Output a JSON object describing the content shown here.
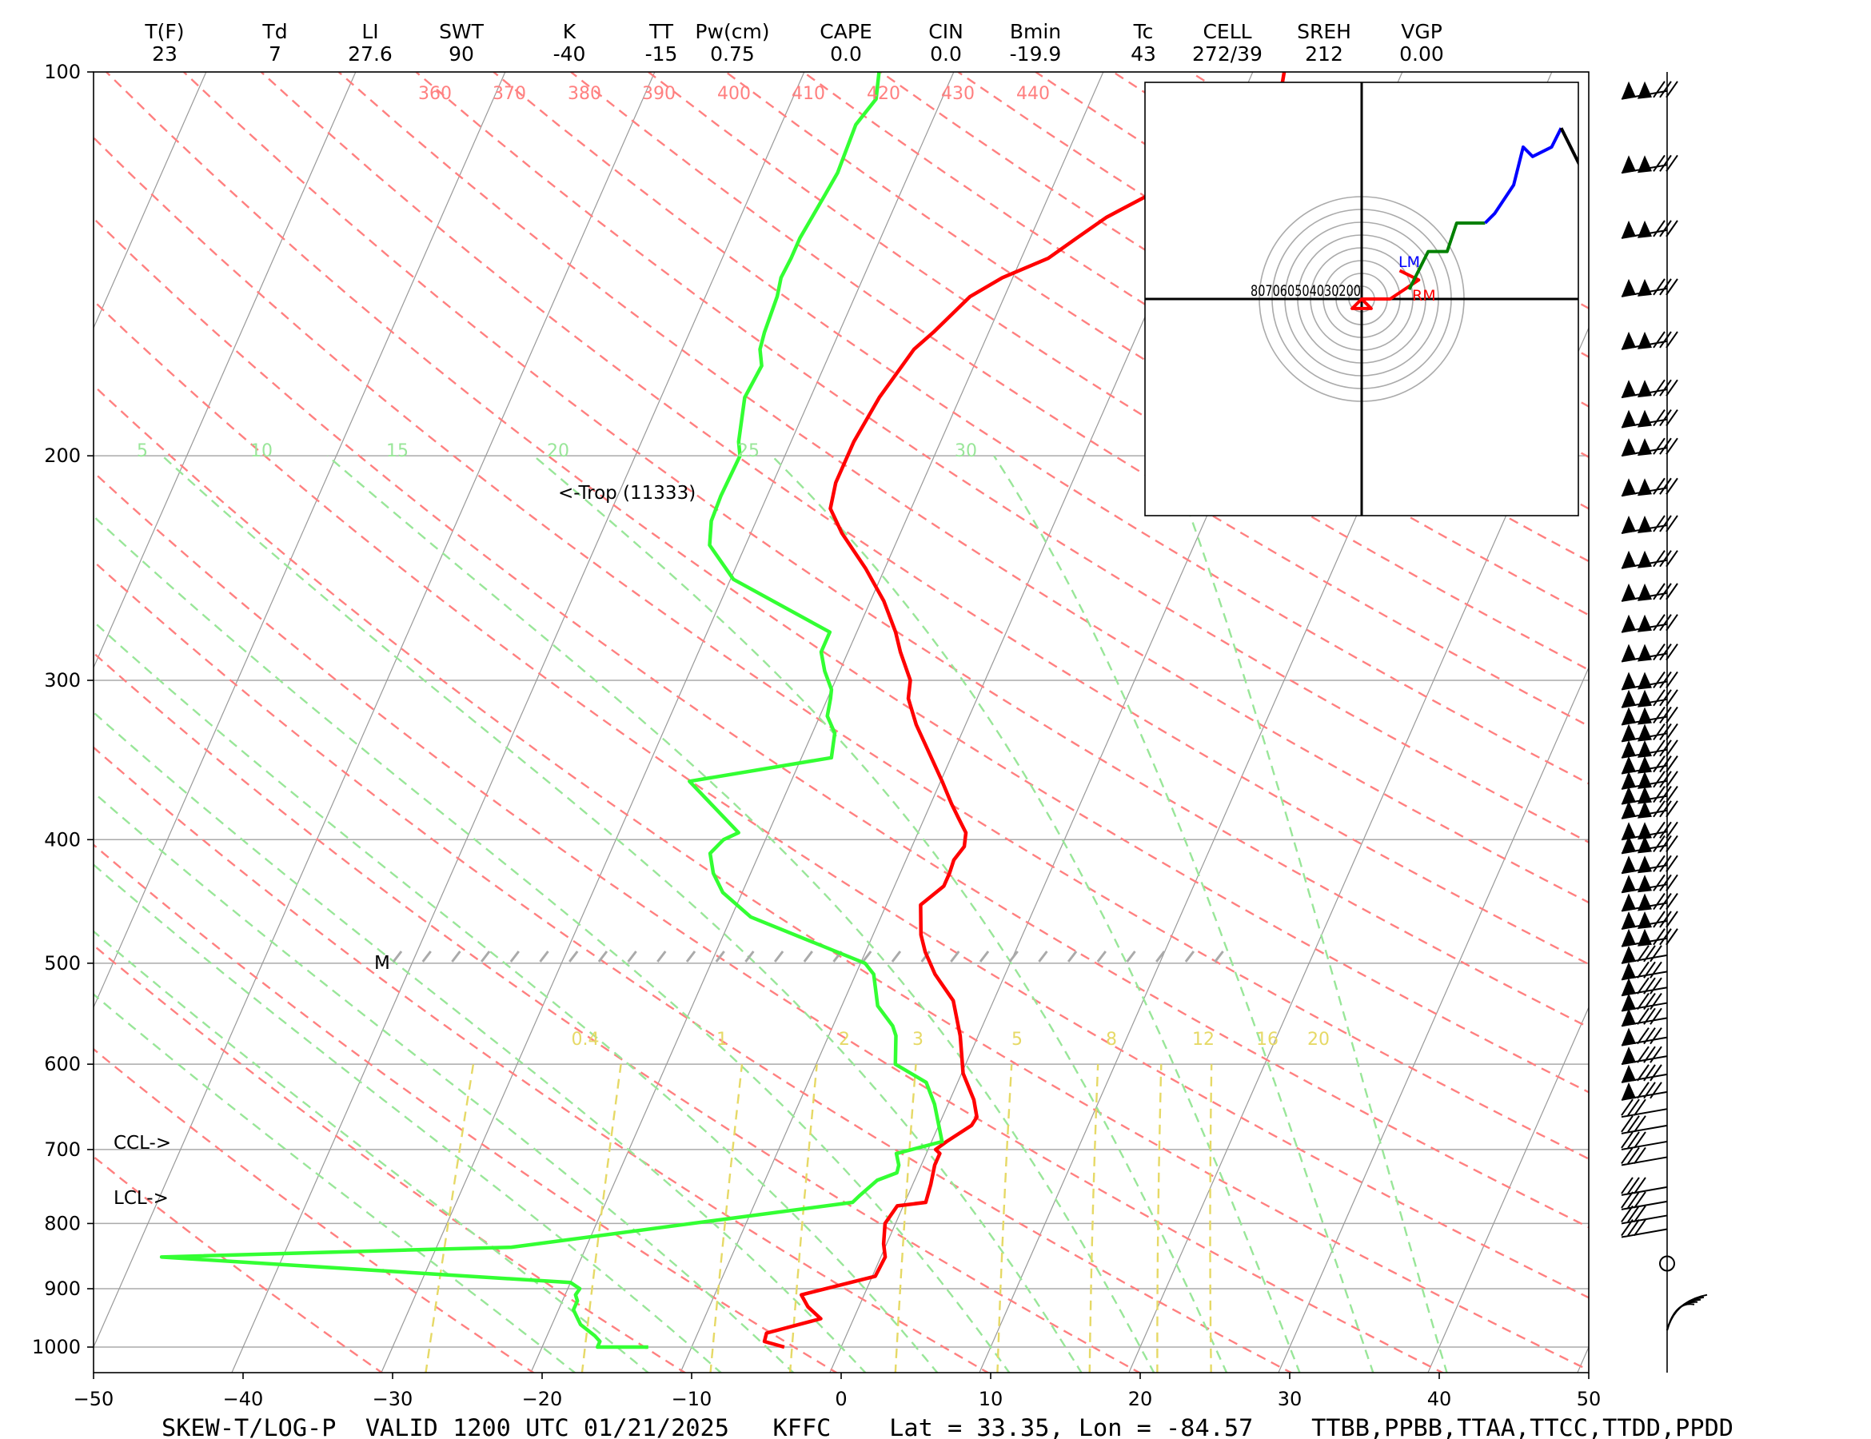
{
  "header": {
    "labels": [
      "T(F)",
      "Td",
      "LI",
      "SWT",
      "K",
      "TT",
      "Pw(cm)",
      "CAPE",
      "CIN",
      "Bmin",
      "Tc",
      "CELL",
      "SREH",
      "VGP"
    ],
    "values": [
      "23",
      "7",
      "27.6",
      "90",
      "-40",
      "-15",
      "0.75",
      "0.0",
      "0.0",
      "-19.9",
      "43",
      "272/39",
      "212",
      "0.00"
    ]
  },
  "footer": {
    "title": "SKEW-T/LOG-P  VALID 1200 UTC 01/21/2025   KFFC    Lat = 33.35, Lon = -84.57    TTBB,PPBB,TTAA,TTCC,TTDD,PPDD"
  },
  "annotations": {
    "trop": "<-Trop (11333)",
    "ccl": "CCL->",
    "lcl": "LCL->",
    "m": "M"
  },
  "hodograph": {
    "ring_labels": "807060504030200",
    "lm": "LM",
    "rm": "RM"
  },
  "colors": {
    "temperature": "#ff0000",
    "dewpoint": "#33ff33",
    "dry_adiabat": "#ff8080",
    "moist_adiabat": "#99e699",
    "mixing_ratio": "#e6d966",
    "isotherm": "#999999"
  },
  "chart_data": {
    "type": "skew-t",
    "xlabel": "",
    "ylabel": "",
    "x_ticks": [
      "−50",
      "−40",
      "−30",
      "−20",
      "−10",
      "0",
      "10",
      "20",
      "30",
      "40",
      "50"
    ],
    "x_tick_values": [
      -50,
      -40,
      -30,
      -20,
      -10,
      0,
      10,
      20,
      30,
      40,
      50
    ],
    "y_ticks": [
      "100",
      "200",
      "300",
      "400",
      "500",
      "600",
      "700",
      "800",
      "900",
      "1000"
    ],
    "y_tick_values": [
      100,
      200,
      300,
      400,
      500,
      600,
      700,
      800,
      900,
      1000
    ],
    "xlim": [
      -50,
      50
    ],
    "ylim_hpa": [
      1050,
      100
    ],
    "y_scale": "log",
    "dry_adiabat_labels": [
      "360",
      "370",
      "380",
      "390",
      "400",
      "410",
      "420",
      "430",
      "440"
    ],
    "dry_adiabat_values": [
      360,
      370,
      380,
      390,
      400,
      410,
      420,
      430,
      440
    ],
    "moist_adiabat_labels": [
      "5",
      "10",
      "15",
      "20",
      "25",
      "30"
    ],
    "moist_adiabat_values": [
      5,
      10,
      15,
      20,
      25,
      30
    ],
    "mixing_ratio_labels": [
      "0.4",
      "1",
      "2",
      "3",
      "5",
      "8",
      "12",
      "16",
      "20"
    ],
    "mixing_ratio_values": [
      0.4,
      1,
      2,
      3,
      5,
      8,
      12,
      16,
      20
    ],
    "series": [
      {
        "name": "temperature",
        "points": [
          [
            1000,
            -3.8
          ],
          [
            990,
            -5.3
          ],
          [
            975,
            -5.4
          ],
          [
            950,
            -2.2
          ],
          [
            930,
            -3.4
          ],
          [
            910,
            -4.2
          ],
          [
            880,
            0.2
          ],
          [
            850,
            0.3
          ],
          [
            830,
            -0.2
          ],
          [
            800,
            -0.7
          ],
          [
            775,
            -0.4
          ],
          [
            770,
            1.4
          ],
          [
            745,
            1.2
          ],
          [
            720,
            0.9
          ],
          [
            705,
            0.9
          ],
          [
            700,
            0.5
          ],
          [
            690,
            1.0
          ],
          [
            670,
            2.2
          ],
          [
            660,
            2.3
          ],
          [
            640,
            1.6
          ],
          [
            610,
            0.1
          ],
          [
            570,
            -1.2
          ],
          [
            535,
            -2.7
          ],
          [
            510,
            -4.7
          ],
          [
            490,
            -6.0
          ],
          [
            475,
            -6.8
          ],
          [
            450,
            -7.7
          ],
          [
            435,
            -6.7
          ],
          [
            425,
            -6.7
          ],
          [
            415,
            -6.8
          ],
          [
            405,
            -6.5
          ],
          [
            395,
            -6.8
          ],
          [
            385,
            -7.7
          ],
          [
            375,
            -8.6
          ],
          [
            360,
            -9.9
          ],
          [
            340,
            -11.8
          ],
          [
            325,
            -13.3
          ],
          [
            310,
            -14.6
          ],
          [
            300,
            -15.0
          ],
          [
            285,
            -16.5
          ],
          [
            275,
            -17.4
          ],
          [
            260,
            -19.1
          ],
          [
            245,
            -21.3
          ],
          [
            230,
            -23.9
          ],
          [
            220,
            -25.4
          ],
          [
            210,
            -25.8
          ],
          [
            200,
            -25.8
          ],
          [
            195,
            -25.8
          ],
          [
            180,
            -25.4
          ],
          [
            165,
            -24.5
          ],
          [
            160,
            -23.7
          ],
          [
            150,
            -22.3
          ],
          [
            145,
            -20.7
          ],
          [
            140,
            -18.2
          ],
          [
            135,
            -16.9
          ],
          [
            130,
            -15.5
          ],
          [
            125,
            -13.4
          ],
          [
            120,
            -10.3
          ],
          [
            115,
            -9.4
          ],
          [
            108,
            -8.7
          ],
          [
            102,
            -7.7
          ],
          [
            100,
            -7.9
          ]
        ]
      },
      {
        "name": "dewpoint",
        "points": [
          [
            1000,
            -12.9
          ],
          [
            1000,
            -16.3
          ],
          [
            990,
            -16.3
          ],
          [
            980,
            -16.8
          ],
          [
            960,
            -18.1
          ],
          [
            935,
            -19.0
          ],
          [
            920,
            -19.0
          ],
          [
            910,
            -19.3
          ],
          [
            900,
            -19.2
          ],
          [
            890,
            -20.0
          ],
          [
            850,
            -48.1
          ],
          [
            840,
            -33.0
          ],
          [
            835,
            -25.0
          ],
          [
            770,
            -3.5
          ],
          [
            760,
            -3.2
          ],
          [
            740,
            -2.5
          ],
          [
            730,
            -1.4
          ],
          [
            720,
            -1.5
          ],
          [
            705,
            -2.0
          ],
          [
            690,
            0.7
          ],
          [
            670,
            0.0
          ],
          [
            645,
            -0.9
          ],
          [
            620,
            -2.1
          ],
          [
            600,
            -4.7
          ],
          [
            570,
            -5.5
          ],
          [
            560,
            -6.0
          ],
          [
            540,
            -7.6
          ],
          [
            510,
            -8.8
          ],
          [
            500,
            -9.7
          ],
          [
            460,
            -18.7
          ],
          [
            440,
            -21.3
          ],
          [
            425,
            -22.5
          ],
          [
            410,
            -23.3
          ],
          [
            400,
            -22.8
          ],
          [
            395,
            -22.0
          ],
          [
            360,
            -26.8
          ],
          [
            345,
            -18.0
          ],
          [
            330,
            -18.5
          ],
          [
            320,
            -19.5
          ],
          [
            310,
            -19.8
          ],
          [
            305,
            -20.0
          ],
          [
            295,
            -21.0
          ],
          [
            285,
            -21.8
          ],
          [
            275,
            -21.8
          ],
          [
            250,
            -29.8
          ],
          [
            235,
            -32.4
          ],
          [
            225,
            -33.0
          ],
          [
            215,
            -33.1
          ],
          [
            200,
            -33.0
          ],
          [
            195,
            -33.5
          ],
          [
            180,
            -34.4
          ],
          [
            170,
            -34.2
          ],
          [
            165,
            -34.8
          ],
          [
            160,
            -35.0
          ],
          [
            150,
            -35.2
          ],
          [
            145,
            -35.5
          ],
          [
            140,
            -35.4
          ],
          [
            135,
            -35.4
          ],
          [
            130,
            -35.2
          ],
          [
            125,
            -35.0
          ],
          [
            120,
            -34.8
          ],
          [
            110,
            -35.0
          ],
          [
            105,
            -34.4
          ],
          [
            100,
            -35.0
          ]
        ]
      }
    ],
    "hodograph_segments": [
      {
        "color": "#ff0000",
        "points": [
          [
            0,
            0
          ],
          [
            -2,
            -2
          ],
          [
            2,
            -2
          ],
          [
            0,
            0
          ],
          [
            6,
            0
          ],
          [
            12,
            4
          ],
          [
            8,
            6
          ]
        ]
      },
      {
        "color": "#008000",
        "points": [
          [
            10,
            2
          ],
          [
            14,
            10
          ],
          [
            18,
            10
          ],
          [
            20,
            16
          ],
          [
            26,
            16
          ]
        ]
      },
      {
        "color": "#0000ff",
        "points": [
          [
            26,
            16
          ],
          [
            28,
            18
          ],
          [
            32,
            24
          ],
          [
            34,
            32
          ],
          [
            36,
            30
          ],
          [
            40,
            32
          ],
          [
            42,
            36
          ]
        ]
      },
      {
        "color": "#000000",
        "points": [
          [
            42,
            36
          ],
          [
            46,
            28
          ],
          [
            48,
            22
          ],
          [
            46,
            32
          ],
          [
            54,
            36
          ]
        ]
      }
    ]
  }
}
